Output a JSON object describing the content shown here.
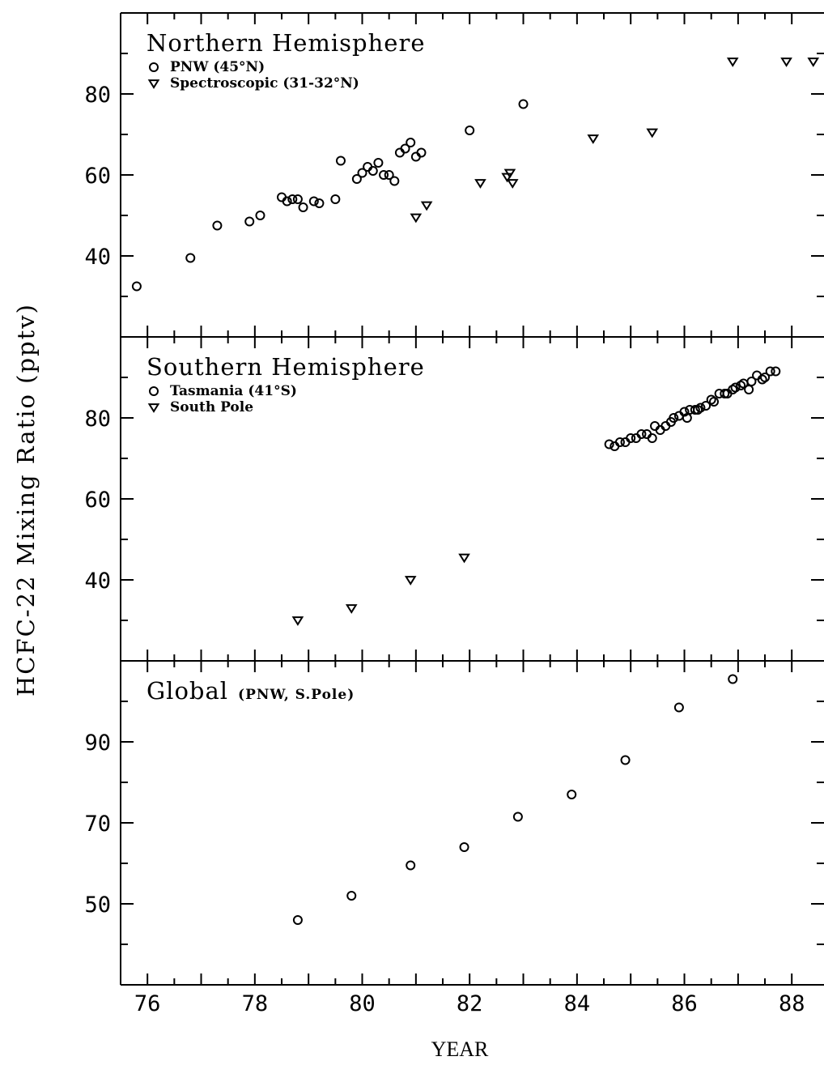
{
  "figure": {
    "ylabel": "HCFC-22  Mixing  Ratio  (pptv)",
    "xlabel": "YEAR"
  },
  "chart_data": [
    {
      "type": "scatter",
      "title": "Northern Hemisphere",
      "xlabel": "YEAR",
      "ylabel": "HCFC-22 Mixing Ratio (pptv)",
      "xlim": [
        75.5,
        88.6
      ],
      "ylim": [
        20,
        100
      ],
      "yticks": [
        40,
        60,
        80
      ],
      "grid": false,
      "legend_position": "top-left",
      "series": [
        {
          "name": "PNW  (45°N)",
          "marker": "circle",
          "points": [
            [
              75.8,
              32.5
            ],
            [
              76.8,
              39.5
            ],
            [
              77.3,
              47.5
            ],
            [
              77.9,
              48.5
            ],
            [
              78.1,
              50
            ],
            [
              78.5,
              54.5
            ],
            [
              78.6,
              53.5
            ],
            [
              78.7,
              54
            ],
            [
              78.8,
              54
            ],
            [
              78.9,
              52
            ],
            [
              79.1,
              53.5
            ],
            [
              79.2,
              53
            ],
            [
              79.5,
              54
            ],
            [
              79.6,
              63.5
            ],
            [
              79.9,
              59
            ],
            [
              80.0,
              60.5
            ],
            [
              80.1,
              62
            ],
            [
              80.2,
              61
            ],
            [
              80.3,
              63
            ],
            [
              80.4,
              60
            ],
            [
              80.5,
              60
            ],
            [
              80.6,
              58.5
            ],
            [
              80.7,
              65.5
            ],
            [
              80.8,
              66.5
            ],
            [
              80.9,
              68
            ],
            [
              81.0,
              64.5
            ],
            [
              81.1,
              65.5
            ],
            [
              82.0,
              71
            ],
            [
              83.0,
              77.5
            ]
          ]
        },
        {
          "name": "Spectroscopic (31-32°N)",
          "marker": "triangle-down",
          "points": [
            [
              81.0,
              49.5
            ],
            [
              81.2,
              52.5
            ],
            [
              82.2,
              58
            ],
            [
              82.7,
              59.5
            ],
            [
              82.75,
              60.5
            ],
            [
              82.8,
              58
            ],
            [
              84.3,
              69
            ],
            [
              85.4,
              70.5
            ],
            [
              86.9,
              88
            ],
            [
              87.9,
              88
            ],
            [
              88.4,
              88
            ]
          ]
        }
      ]
    },
    {
      "type": "scatter",
      "title": "Southern Hemisphere",
      "xlabel": "YEAR",
      "ylabel": "HCFC-22 Mixing Ratio (pptv)",
      "xlim": [
        75.5,
        88.6
      ],
      "ylim": [
        20,
        100
      ],
      "yticks": [
        40,
        60,
        80
      ],
      "grid": false,
      "legend_position": "top-left",
      "series": [
        {
          "name": "Tasmania  (41°S)",
          "marker": "circle",
          "points": [
            [
              84.6,
              73.5
            ],
            [
              84.7,
              73
            ],
            [
              84.8,
              74
            ],
            [
              84.9,
              74
            ],
            [
              85.0,
              75
            ],
            [
              85.1,
              75
            ],
            [
              85.2,
              76
            ],
            [
              85.3,
              76
            ],
            [
              85.4,
              75
            ],
            [
              85.45,
              78
            ],
            [
              85.55,
              77
            ],
            [
              85.65,
              78
            ],
            [
              85.75,
              79
            ],
            [
              85.8,
              80
            ],
            [
              85.9,
              80.5
            ],
            [
              86.0,
              81.5
            ],
            [
              86.05,
              80
            ],
            [
              86.1,
              82
            ],
            [
              86.2,
              82
            ],
            [
              86.25,
              82
            ],
            [
              86.3,
              82.5
            ],
            [
              86.4,
              83
            ],
            [
              86.5,
              84.5
            ],
            [
              86.55,
              84
            ],
            [
              86.65,
              86
            ],
            [
              86.75,
              86
            ],
            [
              86.8,
              86
            ],
            [
              86.9,
              87
            ],
            [
              86.95,
              87.5
            ],
            [
              87.05,
              88
            ],
            [
              87.1,
              88.5
            ],
            [
              87.2,
              87
            ],
            [
              87.25,
              89
            ],
            [
              87.35,
              90.5
            ],
            [
              87.45,
              89.5
            ],
            [
              87.5,
              90
            ],
            [
              87.6,
              91.5
            ],
            [
              87.7,
              91.5
            ]
          ]
        },
        {
          "name": "South Pole",
          "marker": "triangle-down",
          "points": [
            [
              78.8,
              30
            ],
            [
              79.8,
              33
            ],
            [
              80.9,
              40
            ],
            [
              81.9,
              45.5
            ]
          ]
        }
      ]
    },
    {
      "type": "scatter",
      "title": "Global",
      "title_note": "(PNW, S.Pole)",
      "xlabel": "YEAR",
      "ylabel": "HCFC-22 Mixing Ratio (pptv)",
      "xlim": [
        75.5,
        88.6
      ],
      "ylim": [
        30,
        110
      ],
      "yticks": [
        50,
        70,
        90
      ],
      "xticks": [
        76,
        78,
        80,
        82,
        84,
        86,
        88
      ],
      "grid": false,
      "series": [
        {
          "name": "",
          "marker": "circle",
          "points": [
            [
              78.8,
              46
            ],
            [
              79.8,
              52
            ],
            [
              80.9,
              59.5
            ],
            [
              81.9,
              64
            ],
            [
              82.9,
              71.5
            ],
            [
              83.9,
              77
            ],
            [
              84.9,
              85.5
            ],
            [
              85.9,
              98.5
            ],
            [
              86.9,
              105.5
            ]
          ]
        }
      ]
    }
  ]
}
